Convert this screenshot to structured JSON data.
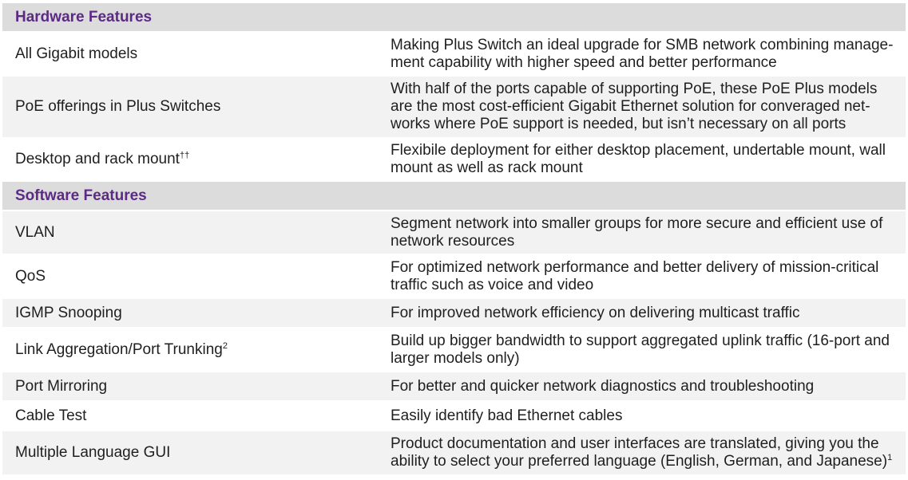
{
  "hardware": {
    "title": "Hardware Features",
    "rows": [
      {
        "feature": "All Gigabit models",
        "sup": "",
        "desc": "Making Plus Switch an ideal upgrade for SMB network combining manage-ment capability with higher speed and better performance"
      },
      {
        "feature": "PoE offerings in Plus Switches",
        "sup": "",
        "desc": "With half of the ports capable of supporting PoE, these PoE Plus models are the most cost-efficient Gigabit Ethernet solution for converaged net-works where PoE support is needed, but isn’t necessary on all ports"
      },
      {
        "feature": "Desktop and rack mount",
        "sup": "††",
        "desc": "Flexibile deployment for either desktop placement, undertable mount, wall mount as well as rack mount"
      }
    ]
  },
  "software": {
    "title": "Software Features",
    "rows": [
      {
        "feature": "VLAN",
        "sup": "",
        "desc": "Segment network into smaller groups for more secure and efficient use of network resources"
      },
      {
        "feature": "QoS",
        "sup": "",
        "desc": "For optimized network performance and better delivery of mission-critical traffic such as voice and video"
      },
      {
        "feature": "IGMP Snooping",
        "sup": "",
        "desc": "For improved network efficiency on delivering multicast traffic"
      },
      {
        "feature": "Link Aggregation/Port Trunking",
        "sup": "2",
        "desc": "Build up bigger bandwidth to support aggregated uplink traffic (16-port and larger models only)"
      },
      {
        "feature": "Port Mirroring",
        "sup": "",
        "desc": "For better and quicker network diagnostics and troubleshooting"
      },
      {
        "feature": "Cable Test",
        "sup": "",
        "desc": "Easily identify bad Ethernet cables"
      },
      {
        "feature": "Multiple Language GUI",
        "sup": "",
        "desc": "Product documentation and user interfaces are translated, giving you the ability to select your preferred language (English, German, and Japanese)",
        "desc_sup": "1"
      }
    ]
  }
}
